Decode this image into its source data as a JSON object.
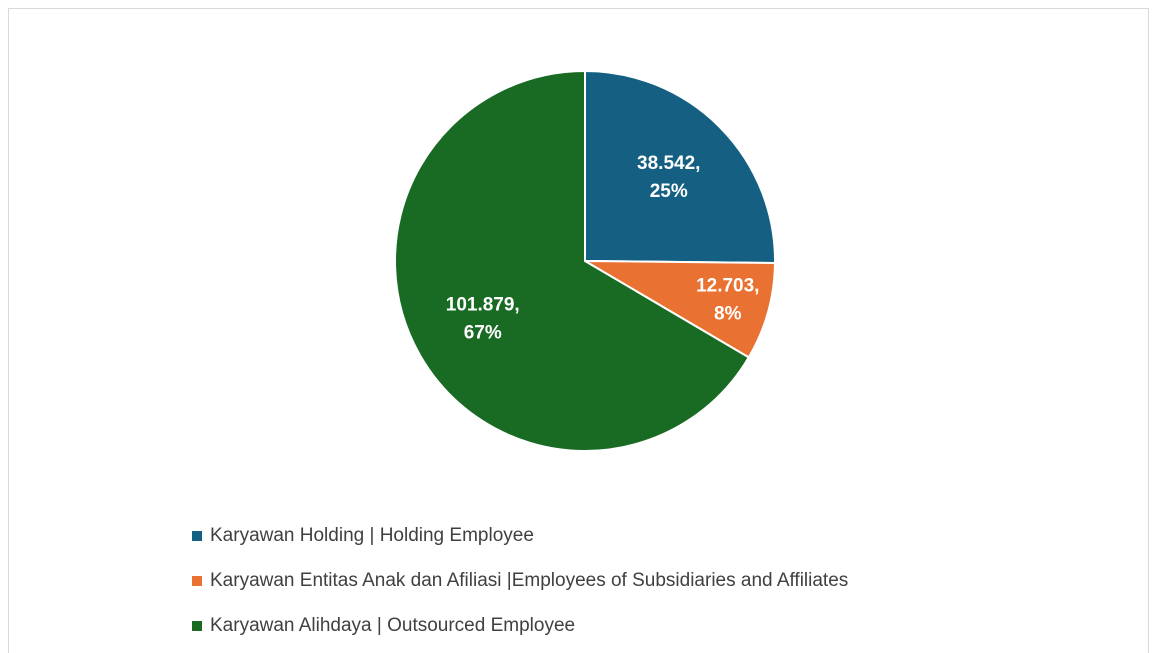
{
  "chart_data": {
    "type": "pie",
    "categories": [
      "Karyawan Holding | Holding Employee",
      "Karyawan Entitas Anak dan Afiliasi |Employees of Subsidiaries and Affiliates",
      "Karyawan Alihdaya | Outsourced Employee"
    ],
    "values": [
      38542,
      12703,
      101879
    ],
    "value_labels": [
      [
        "38.542,",
        "25%"
      ],
      [
        "12.703,",
        "8%"
      ],
      [
        "101.879,",
        "67%"
      ]
    ],
    "colors": [
      "#156082",
      "#e97132",
      "#196b24"
    ],
    "legend": "bottom"
  }
}
